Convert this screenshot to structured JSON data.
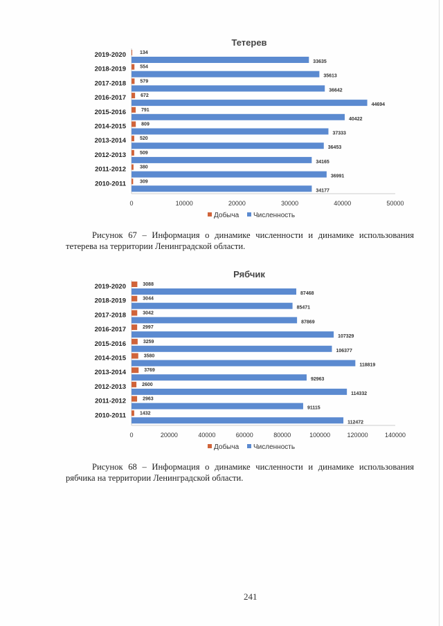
{
  "chart_data": [
    {
      "type": "bar",
      "orientation": "horizontal",
      "title": "Тетерев",
      "categories": [
        "2019-2020",
        "2018-2019",
        "2017-2018",
        "2016-2017",
        "2015-2016",
        "2014-2015",
        "2013-2014",
        "2012-2013",
        "2011-2012",
        "2010-2011"
      ],
      "series": [
        {
          "name": "Добыча",
          "color": "#d0643a",
          "values": [
            134,
            554,
            579,
            672,
            791,
            809,
            520,
            509,
            380,
            309
          ]
        },
        {
          "name": "Численность",
          "color": "#5b8ad0",
          "values": [
            33635,
            35613,
            36642,
            44694,
            40422,
            37333,
            36453,
            34165,
            36991,
            34177
          ]
        }
      ],
      "xlim": [
        0,
        50000
      ],
      "xticks": [
        "0",
        "10000",
        "20000",
        "30000",
        "40000",
        "50000"
      ],
      "legend": "bottom",
      "grid": false
    },
    {
      "type": "bar",
      "orientation": "horizontal",
      "title": "Рябчик",
      "categories": [
        "2019-2020",
        "2018-2019",
        "2017-2018",
        "2016-2017",
        "2015-2016",
        "2014-2015",
        "2013-2014",
        "2012-2013",
        "2011-2012",
        "2010-2011"
      ],
      "series": [
        {
          "name": "Добыча",
          "color": "#d0643a",
          "values": [
            3088,
            3044,
            3042,
            2997,
            3259,
            3580,
            3769,
            2600,
            2963,
            1432
          ]
        },
        {
          "name": "Численность",
          "color": "#5b8ad0",
          "values": [
            87468,
            85471,
            87869,
            107329,
            106377,
            118819,
            92963,
            114332,
            91115,
            112472
          ]
        }
      ],
      "xlim": [
        0,
        140000
      ],
      "xticks": [
        "0",
        "20000",
        "40000",
        "60000",
        "80000",
        "100000",
        "120000",
        "140000"
      ],
      "legend": "bottom",
      "grid": false
    }
  ],
  "captions": [
    {
      "line1": "Рисунок 67 – Информация о динамике численности и динамике использования",
      "line2": "тетерева на территории Ленинградской области."
    },
    {
      "line1": "Рисунок 68 – Информация о динамике численности и динамике использования",
      "line2": "рябчика на территории Ленинградской области."
    }
  ],
  "page_number": "241"
}
